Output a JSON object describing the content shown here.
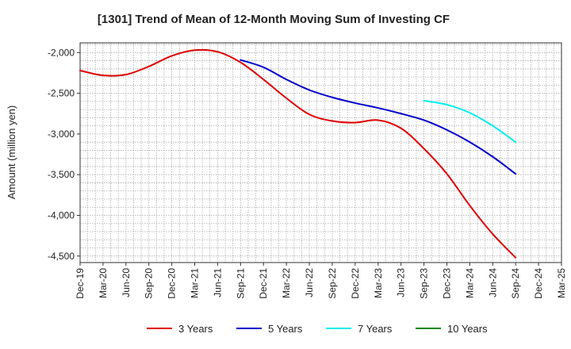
{
  "chart_data": {
    "type": "line",
    "title": "[1301]  Trend of Mean of 12-Month Moving Sum of Investing CF",
    "xlabel": "",
    "ylabel": "Amount (million yen)",
    "ylim": [
      -4580,
      -1880
    ],
    "yticks": [
      -2000,
      -2500,
      -3000,
      -3500,
      -4000,
      -4500
    ],
    "ytick_labels": [
      "-2,000",
      "-2,500",
      "-3,000",
      "-3,500",
      "-4,000",
      "-4,500"
    ],
    "x_categories": [
      "Dec-19",
      "Mar-20",
      "Jun-20",
      "Sep-20",
      "Dec-20",
      "Mar-21",
      "Jun-21",
      "Sep-21",
      "Dec-21",
      "Mar-22",
      "Jun-22",
      "Sep-22",
      "Dec-22",
      "Mar-23",
      "Jun-23",
      "Sep-23",
      "Dec-23",
      "Mar-24",
      "Jun-24",
      "Sep-24",
      "Dec-24",
      "Mar-25"
    ],
    "grid": true,
    "legend_position": "bottom",
    "series": [
      {
        "name": "3 Years",
        "color": "#dd0000",
        "x": [
          "Dec-19",
          "Mar-20",
          "Jun-20",
          "Sep-20",
          "Dec-20",
          "Mar-21",
          "Jun-21",
          "Sep-21",
          "Dec-21",
          "Mar-22",
          "Jun-22",
          "Sep-22",
          "Dec-22",
          "Mar-23",
          "Jun-23",
          "Sep-23",
          "Dec-23",
          "Mar-24",
          "Jun-24",
          "Sep-24"
        ],
        "values": [
          -2220,
          -2280,
          -2270,
          -2170,
          -2040,
          -1970,
          -1990,
          -2120,
          -2330,
          -2560,
          -2760,
          -2840,
          -2860,
          -2830,
          -2930,
          -3180,
          -3490,
          -3880,
          -4230,
          -4520
        ]
      },
      {
        "name": "5 Years",
        "color": "#0000cc",
        "x": [
          "Sep-21",
          "Dec-21",
          "Mar-22",
          "Jun-22",
          "Sep-22",
          "Dec-22",
          "Mar-23",
          "Jun-23",
          "Sep-23",
          "Dec-23",
          "Mar-24",
          "Jun-24",
          "Sep-24"
        ],
        "values": [
          -2090,
          -2180,
          -2330,
          -2460,
          -2550,
          -2620,
          -2680,
          -2750,
          -2830,
          -2950,
          -3100,
          -3280,
          -3490
        ]
      },
      {
        "name": "7 Years",
        "color": "#00eeee",
        "x": [
          "Sep-23",
          "Dec-23",
          "Mar-24",
          "Jun-24",
          "Sep-24"
        ],
        "values": [
          -2590,
          -2640,
          -2740,
          -2900,
          -3100
        ]
      },
      {
        "name": "10 Years",
        "color": "#008800",
        "x": [],
        "values": []
      }
    ]
  }
}
